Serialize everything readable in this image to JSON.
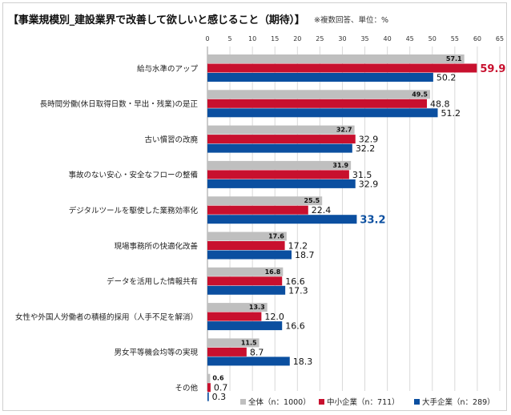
{
  "title": "【事業規模別_建設業界で改善して欲しいと感じること（期待）】",
  "note": "※複数回答、単位：%",
  "colors": {
    "all": "#bfbfbf",
    "small": "#c8102e",
    "large": "#0b4fa0",
    "grid": "#d9d9d9"
  },
  "chart_data": {
    "type": "bar",
    "orientation": "horizontal",
    "xlim": [
      0,
      65
    ],
    "ticks": [
      "0",
      "5",
      "10",
      "15",
      "20",
      "25",
      "30",
      "35",
      "40",
      "45",
      "50",
      "55",
      "60",
      "65"
    ],
    "grid": true,
    "legend_position": "bottom",
    "categories": [
      "給与水準のアップ",
      "長時間労働(休日取得日数・早出・残業)の是正",
      "古い慣習の改廃",
      "事故のない安心・安全なフローの整備",
      "デジタルツールを駆使した業務効率化",
      "現場事務所の快適化改善",
      "データを活用した情報共有",
      "女性や外国人労働者の積極的採用（人手不足を解消）",
      "男女平等機会均等の実現",
      "その他"
    ],
    "series": [
      {
        "name": "全体（n：1000）",
        "color": "#bfbfbf",
        "values": [
          57.1,
          49.5,
          32.7,
          31.9,
          25.5,
          17.6,
          16.8,
          13.3,
          11.5,
          0.6
        ]
      },
      {
        "name": "中小企業（n：711）",
        "color": "#c8102e",
        "values": [
          59.9,
          48.8,
          32.9,
          31.5,
          22.4,
          17.2,
          16.6,
          12.0,
          8.7,
          0.7
        ]
      },
      {
        "name": "大手企業（n：289）",
        "color": "#0b4fa0",
        "values": [
          50.2,
          51.2,
          32.2,
          32.9,
          33.2,
          18.7,
          17.3,
          16.6,
          18.3,
          0.3
        ]
      }
    ],
    "value_labels": [
      [
        "57.1",
        "59.9",
        "50.2"
      ],
      [
        "49.5",
        "48.8",
        "51.2"
      ],
      [
        "32.7",
        "32.9",
        "32.2"
      ],
      [
        "31.9",
        "31.5",
        "32.9"
      ],
      [
        "25.5",
        "22.4",
        "33.2"
      ],
      [
        "17.6",
        "17.2",
        "18.7"
      ],
      [
        "16.8",
        "16.6",
        "17.3"
      ],
      [
        "13.3",
        "12.0",
        "16.6"
      ],
      [
        "11.5",
        "8.7",
        "18.3"
      ],
      [
        "0.6",
        "0.7",
        "0.3"
      ]
    ],
    "highlighted": [
      {
        "category_index": 0,
        "series_index": 1
      },
      {
        "category_index": 4,
        "series_index": 2
      }
    ]
  }
}
